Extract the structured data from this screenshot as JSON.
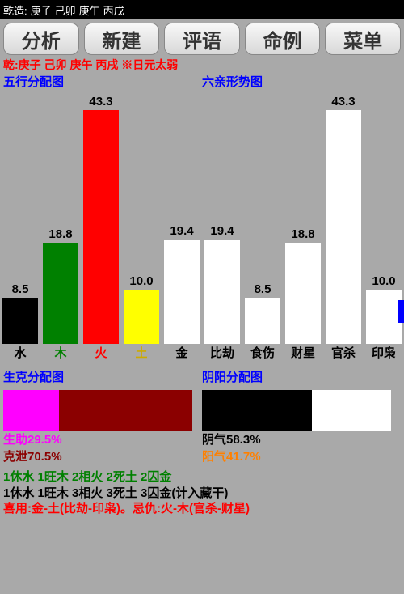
{
  "topbar": {
    "label": "乾造:",
    "pillars": [
      "庚子",
      "己卯",
      "庚午",
      "丙戌"
    ]
  },
  "tabs": [
    "分析",
    "新建",
    "评语",
    "命例",
    "菜单"
  ],
  "info_line": "乾:庚子 己卯 庚午 丙戌 ※日元太弱",
  "chart1": {
    "title": "五行分配图",
    "max": 45,
    "bars": [
      {
        "label": "水",
        "value": 8.5,
        "bar_color": "#000000",
        "label_color": "#000000"
      },
      {
        "label": "木",
        "value": 18.8,
        "bar_color": "#008000",
        "label_color": "#008000"
      },
      {
        "label": "火",
        "value": 43.3,
        "bar_color": "#ff0000",
        "label_color": "#ff0000"
      },
      {
        "label": "土",
        "value": 10.0,
        "bar_color": "#ffff00",
        "label_color": "#ccaa00"
      },
      {
        "label": "金",
        "value": 19.4,
        "bar_color": "#ffffff",
        "label_color": "#000000"
      }
    ]
  },
  "chart2": {
    "title": "六亲形势图",
    "max": 45,
    "bars": [
      {
        "label": "比劫",
        "value": 19.4,
        "bar_color": "#ffffff",
        "label_color": "#000000"
      },
      {
        "label": "食伤",
        "value": 8.5,
        "bar_color": "#ffffff",
        "label_color": "#000000"
      },
      {
        "label": "财星",
        "value": 18.8,
        "bar_color": "#ffffff",
        "label_color": "#000000"
      },
      {
        "label": "官杀",
        "value": 43.3,
        "bar_color": "#ffffff",
        "label_color": "#000000"
      },
      {
        "label": "印枭",
        "value": 10.0,
        "bar_color": "#ffffff",
        "label_color": "#000000"
      }
    ]
  },
  "hbar1": {
    "title": "生克分配图",
    "segs": [
      {
        "color": "#ff00ff",
        "pct": 29.5
      },
      {
        "color": "#8b0000",
        "pct": 70.5
      }
    ],
    "lines": [
      {
        "text": "生助29.5%",
        "color": "#ff00ff"
      },
      {
        "text": "克泄70.5%",
        "color": "#8b0000"
      }
    ]
  },
  "hbar2": {
    "title": "阴阳分配图",
    "segs": [
      {
        "color": "#000000",
        "pct": 58.3
      },
      {
        "color": "#ffffff",
        "pct": 41.7
      }
    ],
    "lines": [
      {
        "text": "阴气58.3%",
        "color": "#000000"
      },
      {
        "text": "阳气41.7%",
        "color": "#ff8000"
      }
    ]
  },
  "summary": {
    "l1": "1休水 1旺木 2相火 2死土 2囚金",
    "l2": "1休水 1旺木 3相火 3死土 3囚金(计入藏干)",
    "l3": "喜用:金-土(比劫-印枭)。忌仇:火-木(官杀-财星)"
  }
}
